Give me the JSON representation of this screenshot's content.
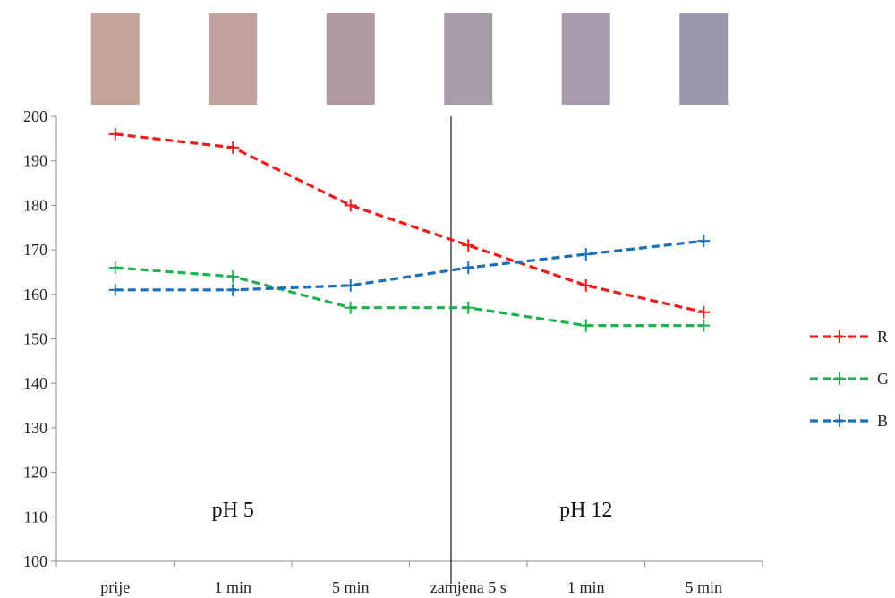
{
  "chart_data": {
    "type": "line",
    "categories": [
      "prije",
      "1 min",
      "5 min",
      "zamjena 5 s",
      "1 min",
      "5 min"
    ],
    "ylim": [
      100,
      200
    ],
    "yticks": [
      100,
      110,
      120,
      130,
      140,
      150,
      160,
      170,
      180,
      190,
      200
    ],
    "grid": false,
    "legend_position": "right",
    "series": [
      {
        "name": "R",
        "color": "#ee1c1c",
        "values": [
          196,
          193,
          180,
          171,
          162,
          156
        ]
      },
      {
        "name": "G",
        "color": "#1fb050",
        "values": [
          166,
          164,
          157,
          157,
          153,
          153
        ]
      },
      {
        "name": "B",
        "color": "#1a6fb8",
        "values": [
          161,
          161,
          162,
          166,
          169,
          172
        ]
      }
    ],
    "annotations": [
      {
        "text": "pH 5",
        "region": "left"
      },
      {
        "text": "pH 12",
        "region": "right"
      }
    ],
    "swatches": [
      "#c2a49b",
      "#c0a19e",
      "#b09aa2",
      "#a89ea9",
      "#a69cab",
      "#9c99ad"
    ]
  }
}
